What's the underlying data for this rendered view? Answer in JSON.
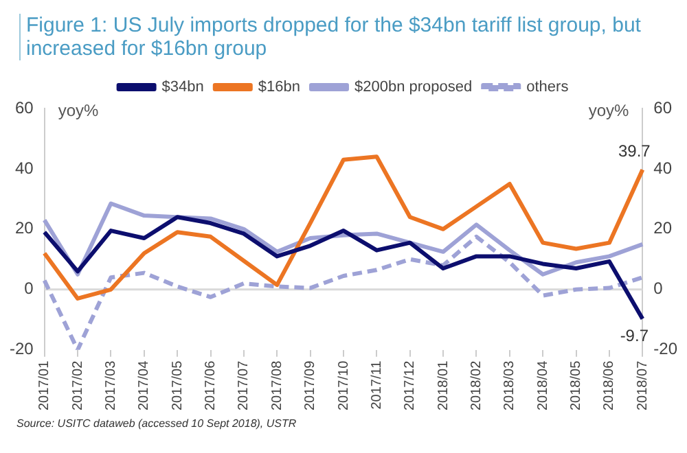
{
  "chart_data": {
    "type": "line",
    "title": "Figure 1: US July imports dropped for the $34bn tariff list group, but increased for $16bn group",
    "ylabel": "yoy%",
    "y2label": "yoy%",
    "categories": [
      "2017/01",
      "2017/02",
      "2017/03",
      "2017/04",
      "2017/05",
      "2017/06",
      "2017/07",
      "2017/08",
      "2017/09",
      "2017/10",
      "2017/11",
      "2017/12",
      "2018/01",
      "2018/02",
      "2018/03",
      "2018/04",
      "2018/05",
      "2018/06",
      "2018/07"
    ],
    "series": [
      {
        "name": "$34bn",
        "color": "#0c0e6e",
        "values": [
          19,
          6,
          19.5,
          17,
          24,
          22,
          18.5,
          11,
          14.5,
          19.5,
          13,
          15.5,
          7,
          11,
          11,
          8.5,
          7,
          9.3,
          -9.7
        ],
        "value_labels": [
          null,
          null,
          null,
          null,
          null,
          null,
          null,
          null,
          null,
          null,
          null,
          null,
          null,
          null,
          null,
          null,
          null,
          null,
          "-9.7"
        ]
      },
      {
        "name": "$16bn",
        "color": "#ec7523",
        "values": [
          12,
          -3,
          0,
          12,
          19,
          17.5,
          9.5,
          1.5,
          22,
          43,
          44,
          24,
          20,
          27.5,
          35,
          15.5,
          13.5,
          15.5,
          39.7
        ],
        "value_labels": [
          null,
          null,
          null,
          null,
          null,
          null,
          null,
          null,
          null,
          null,
          null,
          null,
          null,
          null,
          null,
          null,
          null,
          null,
          "39.7"
        ]
      },
      {
        "name": "$200bn proposed",
        "color": "#9ea2d6",
        "values": [
          23,
          5,
          28.5,
          24.5,
          24,
          23.5,
          20,
          12.5,
          17,
          18,
          18.5,
          15.5,
          12.5,
          21.5,
          13,
          5,
          9,
          11,
          15
        ]
      },
      {
        "name": "others",
        "color": "#9ea2d6",
        "line_style": "dashed",
        "values": [
          3,
          -20,
          4,
          5.5,
          1,
          -2.5,
          2,
          1,
          0.5,
          4.5,
          6.5,
          10,
          8,
          17.5,
          9,
          -2,
          0,
          0.5,
          4
        ]
      }
    ],
    "ylim": [
      -20,
      60
    ],
    "yticks": [
      -20,
      0,
      20,
      40,
      60
    ],
    "y2lim": [
      -20,
      60
    ],
    "y2ticks": [
      -20,
      0,
      20,
      40,
      60
    ],
    "ref_lines": [
      {
        "axis": "y",
        "value": 0,
        "color": "#d9d9d9"
      }
    ],
    "grid": false,
    "legend": "top",
    "marker": "none",
    "annotations": [
      "Source: USITC dataweb (accessed 10 Sept 2018), USTR"
    ]
  }
}
